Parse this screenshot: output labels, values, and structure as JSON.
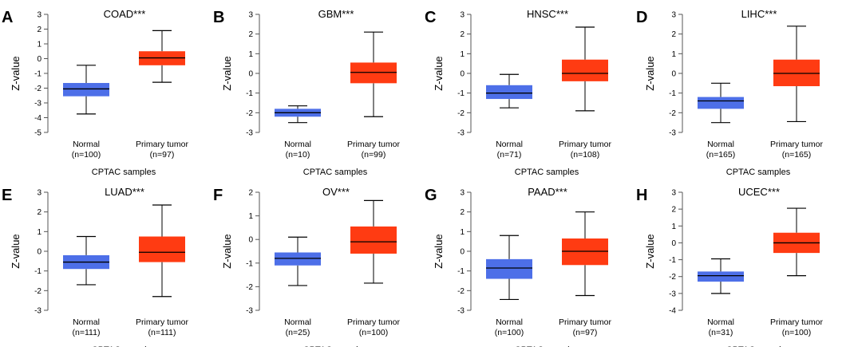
{
  "figure": {
    "box_colors": {
      "normal": "#4d6fe8",
      "tumor": "#ff3b12"
    },
    "stroke_color": "#000000"
  },
  "chart_data": [
    {
      "type": "box",
      "panel_label": "A",
      "title": "COAD***",
      "ylabel": "Z-value",
      "xlabel": "CPTAC samples",
      "ylim": [
        -5,
        3
      ],
      "yticks": [
        -5,
        -4,
        -3,
        -2,
        -1,
        0,
        1,
        2,
        3
      ],
      "groups": [
        {
          "label": "Normal",
          "n": "(n=100)",
          "whisker_low": -3.75,
          "q1": -2.55,
          "median": -2.05,
          "q3": -1.65,
          "whisker_high": -0.45
        },
        {
          "label": "Primary tumor",
          "n": "(n=97)",
          "whisker_low": -1.6,
          "q1": -0.45,
          "median": 0.05,
          "q3": 0.5,
          "whisker_high": 1.9
        }
      ]
    },
    {
      "type": "box",
      "panel_label": "B",
      "title": "GBM***",
      "ylabel": "Z-value",
      "xlabel": "CPTAC samples",
      "ylim": [
        -3,
        3
      ],
      "yticks": [
        -3,
        -2,
        -1,
        0,
        1,
        2,
        3
      ],
      "groups": [
        {
          "label": "Normal",
          "n": "(n=10)",
          "whisker_low": -2.5,
          "q1": -2.2,
          "median": -2.0,
          "q3": -1.8,
          "whisker_high": -1.65
        },
        {
          "label": "Primary tumor",
          "n": "(n=99)",
          "whisker_low": -2.2,
          "q1": -0.5,
          "median": 0.05,
          "q3": 0.55,
          "whisker_high": 2.1
        }
      ]
    },
    {
      "type": "box",
      "panel_label": "C",
      "title": "HNSC***",
      "ylabel": "Z-value",
      "xlabel": "CPTAC samples",
      "ylim": [
        -3,
        3
      ],
      "yticks": [
        -3,
        -2,
        -1,
        0,
        1,
        2,
        3
      ],
      "groups": [
        {
          "label": "Normal",
          "n": "(n=71)",
          "whisker_low": -1.75,
          "q1": -1.3,
          "median": -1.0,
          "q3": -0.6,
          "whisker_high": -0.05
        },
        {
          "label": "Primary tumor",
          "n": "(n=108)",
          "whisker_low": -1.9,
          "q1": -0.4,
          "median": 0.0,
          "q3": 0.7,
          "whisker_high": 2.35
        }
      ]
    },
    {
      "type": "box",
      "panel_label": "D",
      "title": "LIHC***",
      "ylabel": "Z-value",
      "xlabel": "CPTAC samples",
      "ylim": [
        -3,
        3
      ],
      "yticks": [
        -3,
        -2,
        -1,
        0,
        1,
        2,
        3
      ],
      "groups": [
        {
          "label": "Normal",
          "n": "(n=165)",
          "whisker_low": -2.5,
          "q1": -1.8,
          "median": -1.4,
          "q3": -1.2,
          "whisker_high": -0.5
        },
        {
          "label": "Primary tumor",
          "n": "(n=165)",
          "whisker_low": -2.45,
          "q1": -0.65,
          "median": 0.0,
          "q3": 0.7,
          "whisker_high": 2.4
        }
      ]
    },
    {
      "type": "box",
      "panel_label": "E",
      "title": "LUAD***",
      "ylabel": "Z-value",
      "xlabel": "CPTAC samples",
      "ylim": [
        -3,
        3
      ],
      "yticks": [
        -3,
        -2,
        -1,
        0,
        1,
        2,
        3
      ],
      "groups": [
        {
          "label": "Normal",
          "n": "(n=111)",
          "whisker_low": -1.7,
          "q1": -0.9,
          "median": -0.55,
          "q3": -0.2,
          "whisker_high": 0.75
        },
        {
          "label": "Primary tumor",
          "n": "(n=111)",
          "whisker_low": -2.3,
          "q1": -0.55,
          "median": -0.05,
          "q3": 0.75,
          "whisker_high": 2.35
        }
      ]
    },
    {
      "type": "box",
      "panel_label": "F",
      "title": "OV***",
      "ylabel": "Z-value",
      "xlabel": "CPTAC samples",
      "ylim": [
        -3,
        2
      ],
      "yticks": [
        -3,
        -2,
        -1,
        0,
        1,
        2
      ],
      "groups": [
        {
          "label": "Normal",
          "n": "(n=25)",
          "whisker_low": -1.95,
          "q1": -1.1,
          "median": -0.8,
          "q3": -0.55,
          "whisker_high": 0.1
        },
        {
          "label": "Primary tumor",
          "n": "(n=100)",
          "whisker_low": -1.85,
          "q1": -0.6,
          "median": -0.1,
          "q3": 0.55,
          "whisker_high": 1.65
        }
      ]
    },
    {
      "type": "box",
      "panel_label": "G",
      "title": "PAAD***",
      "ylabel": "Z-value",
      "xlabel": "CPTAC samples",
      "ylim": [
        -3,
        3
      ],
      "yticks": [
        -3,
        -2,
        -1,
        0,
        1,
        2,
        3
      ],
      "groups": [
        {
          "label": "Normal",
          "n": "(n=100)",
          "whisker_low": -2.45,
          "q1": -1.4,
          "median": -0.85,
          "q3": -0.4,
          "whisker_high": 0.8
        },
        {
          "label": "Primary tumor",
          "n": "(n=97)",
          "whisker_low": -2.25,
          "q1": -0.7,
          "median": 0.0,
          "q3": 0.65,
          "whisker_high": 2.0
        }
      ]
    },
    {
      "type": "box",
      "panel_label": "H",
      "title": "UCEC***",
      "ylabel": "Z-value",
      "xlabel": "CPTAC samples",
      "ylim": [
        -4,
        3
      ],
      "yticks": [
        -4,
        -3,
        -2,
        -1,
        0,
        1,
        2,
        3
      ],
      "groups": [
        {
          "label": "Normal",
          "n": "(n=31)",
          "whisker_low": -3.0,
          "q1": -2.3,
          "median": -1.95,
          "q3": -1.7,
          "whisker_high": -0.95
        },
        {
          "label": "Primary tumor",
          "n": "(n=100)",
          "whisker_low": -1.95,
          "q1": -0.6,
          "median": 0.0,
          "q3": 0.6,
          "whisker_high": 2.05
        }
      ]
    }
  ]
}
